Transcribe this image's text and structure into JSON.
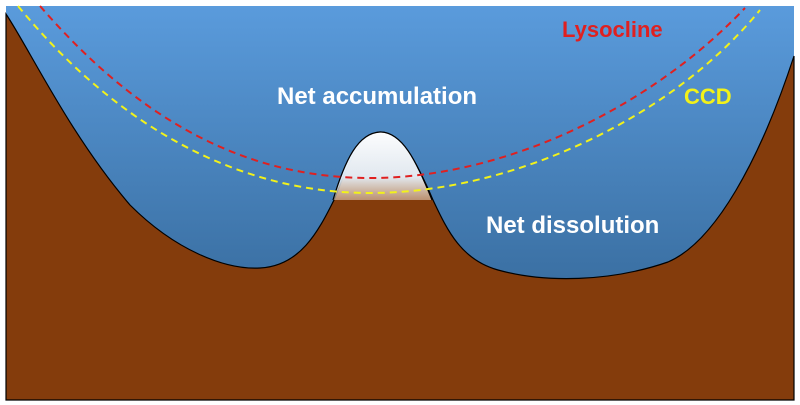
{
  "labels": {
    "lysocline": "Lysocline",
    "ccd": "CCD",
    "net_accumulation": "Net accumulation",
    "net_dissolution": "Net dissolution"
  },
  "colors": {
    "sediment": "#843C0C",
    "water_top": "#5A9BDC",
    "water_bottom": "#2D5D8A",
    "lysocline": "#E02020",
    "ccd": "#F2F21A",
    "label_text": "#FFFFFF",
    "carbonate_peak": "#FFFFFF",
    "carbonate_base": "#F7E3C8"
  }
}
